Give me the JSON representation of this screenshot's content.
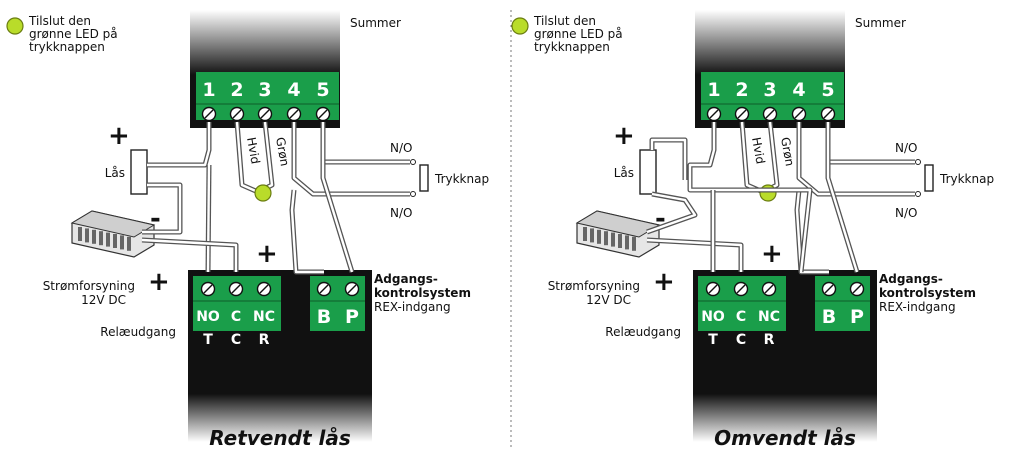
{
  "colors": {
    "terminal_green": "#1a9e4a",
    "led_yellow": "#b9dc2a",
    "device_black": "#111111"
  },
  "icons": [
    "led-icon",
    "lock-icon",
    "power-supply-icon",
    "push-button-icon",
    "screw-terminal-icon"
  ],
  "diagrams": [
    {
      "led_note": [
        "Tilslut den",
        "grønne LED på",
        "trykknappen"
      ],
      "buzzer": "Summer",
      "terminals": [
        "1",
        "2",
        "3",
        "4",
        "5"
      ],
      "wire_white": "Hvid",
      "wire_green": "Grøn",
      "no_top": "N/O",
      "no_bottom": "N/O",
      "push_button": "Trykknap",
      "lock": "Lås",
      "psu": [
        "Strømforsyning",
        "12V DC"
      ],
      "relay_out": "Relæudgang",
      "relay_labels": [
        "NO",
        "C",
        "NC"
      ],
      "relay_sub": [
        "T",
        "C",
        "R"
      ],
      "bp": [
        "B",
        "P"
      ],
      "access_title": [
        "Adgangs-",
        "kontrolsystem"
      ],
      "access_sub": "REX-indgang",
      "plus_lock": "+",
      "minus": "-",
      "plus_psu_a": "+",
      "plus_psu_b": "+",
      "caption": "Retvendt lås"
    },
    {
      "led_note": [
        "Tilslut den",
        "grønne LED på",
        "trykknappen"
      ],
      "buzzer": "Summer",
      "terminals": [
        "1",
        "2",
        "3",
        "4",
        "5"
      ],
      "wire_white": "Hvid",
      "wire_green": "Grøn",
      "no_top": "N/O",
      "no_bottom": "N/O",
      "push_button": "Trykknap",
      "lock": "Lås",
      "psu": [
        "Strømforsyning",
        "12V DC"
      ],
      "relay_out": "Relæudgang",
      "relay_labels": [
        "NO",
        "C",
        "NC"
      ],
      "relay_sub": [
        "T",
        "C",
        "R"
      ],
      "bp": [
        "B",
        "P"
      ],
      "access_title": [
        "Adgangs-",
        "kontrolsystem"
      ],
      "access_sub": "REX-indgang",
      "plus_lock": "+",
      "minus": "-",
      "plus_psu_a": "+",
      "plus_psu_b": "+",
      "caption": "Omvendt lås"
    }
  ]
}
